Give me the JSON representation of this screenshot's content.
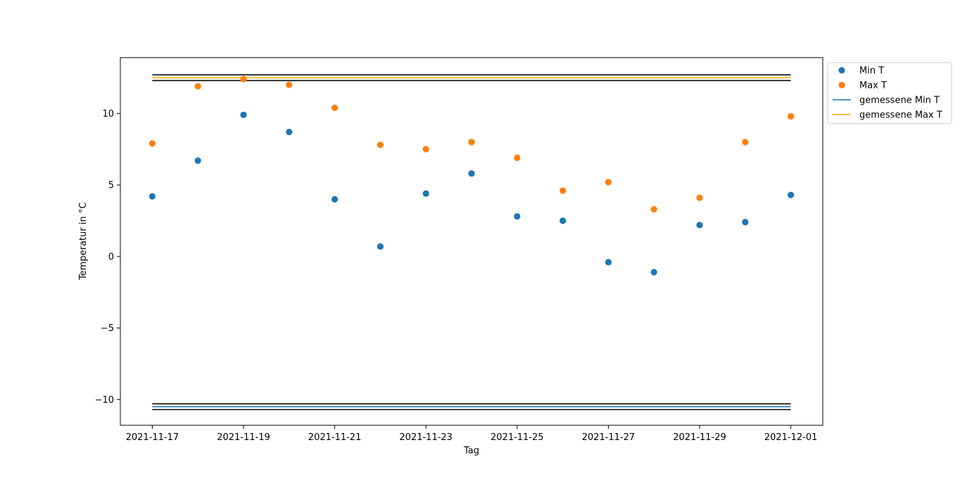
{
  "chart_data": {
    "type": "scatter",
    "title": "",
    "xlabel": "Tag",
    "ylabel": "Temperatur in °C",
    "x": [
      "2021-11-17",
      "2021-11-18",
      "2021-11-19",
      "2021-11-20",
      "2021-11-21",
      "2021-11-22",
      "2021-11-23",
      "2021-11-24",
      "2021-11-25",
      "2021-11-26",
      "2021-11-27",
      "2021-11-28",
      "2021-11-29",
      "2021-11-30",
      "2021-12-01"
    ],
    "xlim": [
      "2021-11-16T07:12",
      "2021-12-01T16:48"
    ],
    "ylim": [
      -11.8,
      13.9
    ],
    "xticks": [
      "2021-11-17",
      "2021-11-19",
      "2021-11-21",
      "2021-11-23",
      "2021-11-25",
      "2021-11-27",
      "2021-11-29",
      "2021-12-01"
    ],
    "yticks": [
      -10,
      -5,
      0,
      5,
      10
    ],
    "ytick_labels": [
      "−10",
      "−5",
      "0",
      "5",
      "10"
    ],
    "grid": false,
    "legend_placement": "outside top-right",
    "series": [
      {
        "name": "Min T",
        "kind": "scatter",
        "color": "#1f77b4",
        "values": [
          4.2,
          6.7,
          9.9,
          8.7,
          4.0,
          0.7,
          4.4,
          5.8,
          2.8,
          2.5,
          -0.4,
          -1.1,
          2.2,
          2.4,
          4.3
        ]
      },
      {
        "name": "Max T",
        "kind": "scatter",
        "color": "#ff7f0e",
        "values": [
          7.9,
          11.9,
          12.4,
          12.0,
          10.4,
          7.8,
          7.5,
          8.0,
          6.9,
          4.6,
          5.2,
          3.3,
          4.1,
          8.0,
          9.8
        ]
      }
    ],
    "lines": [
      {
        "name": "gemessene Min T",
        "color": "#1f77b4",
        "y": -10.5
      },
      {
        "name": "gemessene Max T",
        "color": "#ffa500",
        "y": 12.5
      },
      {
        "name": "",
        "color": "#000000",
        "y": -10.3
      },
      {
        "name": "",
        "color": "#000000",
        "y": -10.7
      },
      {
        "name": "",
        "color": "#000000",
        "y": 12.7
      },
      {
        "name": "",
        "color": "#000000",
        "y": 12.3
      }
    ]
  }
}
